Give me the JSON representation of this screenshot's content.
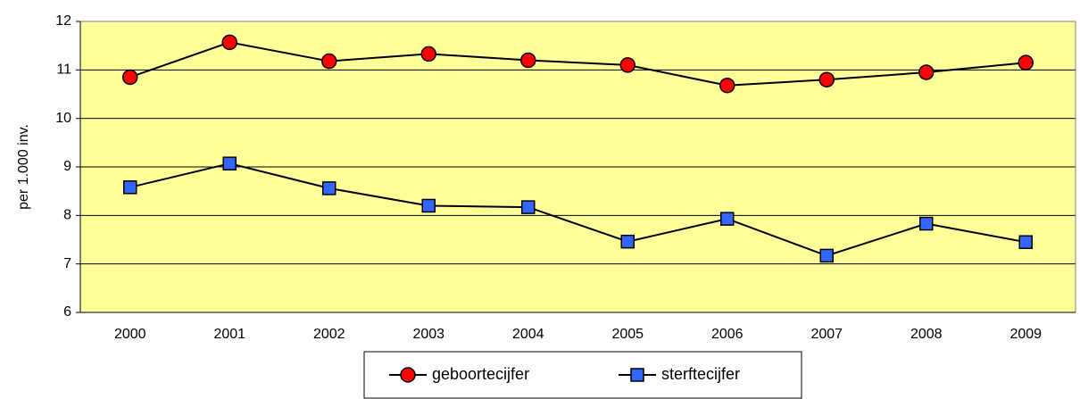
{
  "chart_data": {
    "type": "line",
    "ylabel": "per 1.000 inv.",
    "categories": [
      "2000",
      "2001",
      "2002",
      "2003",
      "2004",
      "2005",
      "2006",
      "2007",
      "2008",
      "2009"
    ],
    "series": [
      {
        "name": "geboortecijfer",
        "color": "#ff0000",
        "marker": "circle",
        "values": [
          10.85,
          11.57,
          11.18,
          11.33,
          11.2,
          11.1,
          10.68,
          10.8,
          10.95,
          11.15
        ]
      },
      {
        "name": "sterftecijfer",
        "color": "#3366ff",
        "marker": "square",
        "values": [
          8.58,
          9.07,
          8.56,
          8.2,
          8.17,
          7.46,
          7.93,
          7.17,
          7.83,
          7.45
        ]
      }
    ],
    "ylim": [
      6,
      12
    ],
    "yticks": [
      6,
      7,
      8,
      9,
      10,
      11,
      12
    ],
    "grid": true,
    "plot_background": "#ffff99",
    "line_color": "#000000",
    "legend": "bottom"
  }
}
